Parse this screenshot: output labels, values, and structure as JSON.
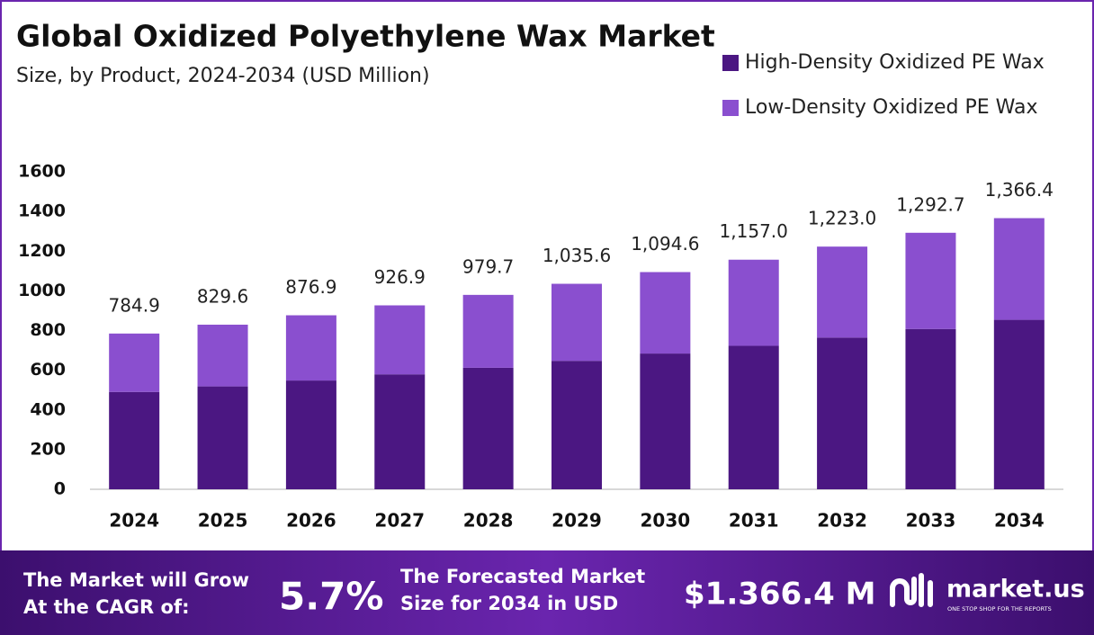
{
  "chart_data": {
    "type": "stacked_bar",
    "title": "Global Oxidized Polyethylene Wax Market",
    "subtitle": "Size, by Product, 2024-2034 (USD Million)",
    "categories": [
      "2024",
      "2025",
      "2026",
      "2027",
      "2028",
      "2029",
      "2030",
      "2031",
      "2032",
      "2033",
      "2034"
    ],
    "series": [
      {
        "name": "High-Density Oxidized PE Wax",
        "color": "#4b1782",
        "values": [
          490.6,
          518.5,
          548.1,
          579.3,
          612.3,
          647.3,
          684.1,
          723.1,
          764.4,
          807.9,
          854.0
        ]
      },
      {
        "name": "Low-Density Oxidized PE Wax",
        "color": "#8a4fcf",
        "values": [
          294.3,
          311.1,
          328.8,
          347.6,
          367.4,
          388.3,
          410.5,
          433.9,
          458.6,
          484.8,
          512.4
        ]
      }
    ],
    "totals": {
      "values": [
        784.9,
        829.6,
        876.9,
        926.9,
        979.7,
        1035.6,
        1094.6,
        1157.0,
        1223.0,
        1292.7,
        1366.4
      ],
      "value_labels": [
        "784.9",
        "829.6",
        "876.9",
        "926.9",
        "979.7",
        "1,035.6",
        "1,094.6",
        "1,157.0",
        "1,223.0",
        "1,292.7",
        "1,366.4"
      ]
    },
    "ylim": [
      0,
      1600
    ],
    "yticks": [
      0,
      200,
      400,
      600,
      800,
      1000,
      1200,
      1400,
      1600
    ],
    "grid": false,
    "legend": "top-right"
  },
  "footer": {
    "cagr_text": [
      "The Market will Grow",
      "At the CAGR of:"
    ],
    "cagr_value": "5.7%",
    "forecast_text": [
      "The Forecasted Market",
      "Size for 2034 in USD"
    ],
    "forecast_value": "$1.366.4 M",
    "logo": "market.us",
    "tagline": "ONE STOP SHOP FOR THE REPORTS"
  }
}
